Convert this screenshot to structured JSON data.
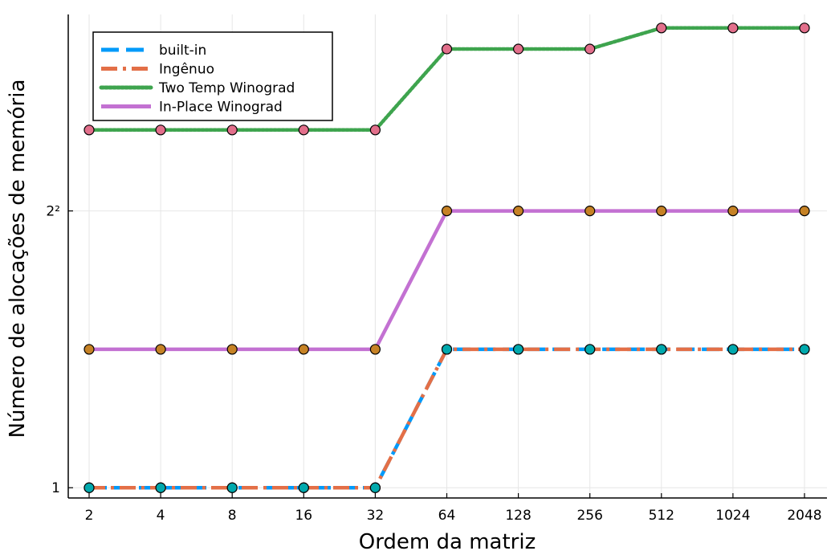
{
  "chart_data": {
    "type": "line",
    "xlabel": "Ordem da matriz",
    "ylabel": "Número de alocações de memória",
    "x_scale": "log2",
    "y_scale": "log2",
    "categories": [
      "2",
      "4",
      "8",
      "16",
      "32",
      "64",
      "128",
      "256",
      "512",
      "1024",
      "2048"
    ],
    "x": [
      2,
      4,
      8,
      16,
      32,
      64,
      128,
      256,
      512,
      1024,
      2048
    ],
    "y_ticks": [
      {
        "value": 1,
        "label": "1"
      },
      {
        "value": 4,
        "label": "2²"
      }
    ],
    "ylim": [
      0.95,
      10.7
    ],
    "grid": true,
    "legend_position": "top-left",
    "series": [
      {
        "name": "built-in",
        "style": "dashed",
        "color": "#009AFA",
        "marker_color": "#00A9AD",
        "values": [
          1,
          1,
          1,
          1,
          1,
          2,
          2,
          2,
          2,
          2,
          2
        ]
      },
      {
        "name": "Ingênuo",
        "style": "dashdot",
        "color": "#E36F47",
        "marker_color": "#00A9AD",
        "values": [
          1,
          1,
          1,
          1,
          1,
          2,
          2,
          2,
          2,
          2,
          2
        ]
      },
      {
        "name": "Two Temp Winograd",
        "style": "dotted",
        "color": "#3EA44E",
        "marker_color": "#E26F8B",
        "values": [
          6,
          6,
          6,
          6,
          6,
          9,
          9,
          9,
          10,
          10,
          10
        ]
      },
      {
        "name": "In-Place Winograd",
        "style": "solid",
        "color": "#C371D2",
        "marker_color": "#C68225",
        "values": [
          2,
          2,
          2,
          2,
          2,
          4,
          4,
          4,
          4,
          4,
          4
        ]
      }
    ]
  }
}
